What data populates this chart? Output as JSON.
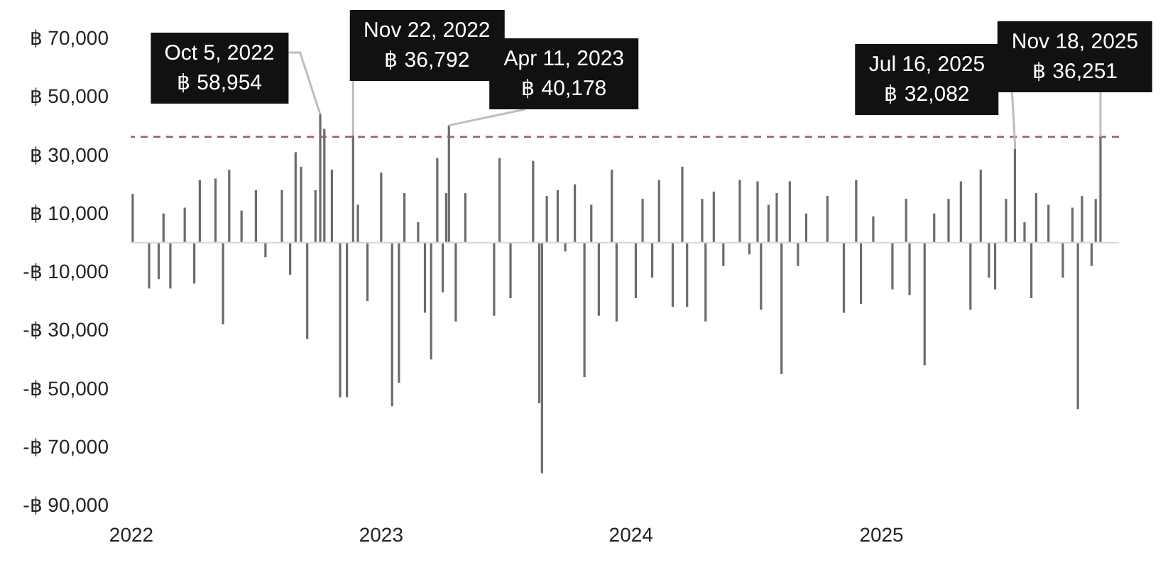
{
  "chart_data": {
    "type": "bar",
    "color": "#6b6b6b",
    "x": [
      "2022-01-04",
      "2022-01-28",
      "2022-02-11",
      "2022-02-18",
      "2022-02-28",
      "2022-03-21",
      "2022-04-04",
      "2022-04-12",
      "2022-05-05",
      "2022-05-16",
      "2022-05-25",
      "2022-06-12",
      "2022-07-03",
      "2022-07-17",
      "2022-08-10",
      "2022-08-22",
      "2022-08-30",
      "2022-09-07",
      "2022-09-16",
      "2022-09-28",
      "2022-10-05",
      "2022-10-11",
      "2022-10-22",
      "2022-11-03",
      "2022-11-13",
      "2022-11-22",
      "2022-11-29",
      "2022-12-13",
      "2023-01-02",
      "2023-01-18",
      "2023-01-28",
      "2023-02-05",
      "2023-02-25",
      "2023-03-07",
      "2023-03-16",
      "2023-03-25",
      "2023-04-02",
      "2023-04-07",
      "2023-04-11",
      "2023-04-21",
      "2023-05-05",
      "2023-06-16",
      "2023-06-24",
      "2023-07-10",
      "2023-08-12",
      "2023-08-21",
      "2023-08-25",
      "2023-09-01",
      "2023-09-17",
      "2023-09-28",
      "2023-10-12",
      "2023-10-26",
      "2023-11-05",
      "2023-11-16",
      "2023-12-05",
      "2023-12-12",
      "2024-01-09",
      "2024-01-19",
      "2024-02-02",
      "2024-02-12",
      "2024-03-03",
      "2024-03-17",
      "2024-03-24",
      "2024-04-15",
      "2024-04-20",
      "2024-05-02",
      "2024-05-16",
      "2024-06-09",
      "2024-06-23",
      "2024-07-05",
      "2024-07-10",
      "2024-07-21",
      "2024-08-02",
      "2024-08-09",
      "2024-08-21",
      "2024-09-02",
      "2024-09-14",
      "2024-10-15",
      "2024-11-08",
      "2024-11-26",
      "2024-12-03",
      "2024-12-21",
      "2025-01-18",
      "2025-02-07",
      "2025-02-12",
      "2025-03-06",
      "2025-03-20",
      "2025-04-10",
      "2025-04-28",
      "2025-05-12",
      "2025-05-27",
      "2025-06-08",
      "2025-06-17",
      "2025-07-03",
      "2025-07-16",
      "2025-07-30",
      "2025-08-09",
      "2025-08-16",
      "2025-09-03",
      "2025-09-24",
      "2025-10-08",
      "2025-10-16",
      "2025-10-22",
      "2025-11-05",
      "2025-11-11",
      "2025-11-18"
    ],
    "values": [
      16700,
      -15700,
      -12500,
      10000,
      -15700,
      12000,
      -14000,
      21500,
      22000,
      -28000,
      25000,
      11000,
      18000,
      -5000,
      18000,
      -11000,
      31000,
      26000,
      -33000,
      18000,
      44000,
      39000,
      25000,
      -53000,
      -53000,
      36792,
      13000,
      -20000,
      24000,
      -56000,
      -48000,
      17000,
      7000,
      -24000,
      -40000,
      29000,
      -17000,
      17000,
      40178,
      -27000,
      17000,
      -25000,
      29000,
      -19000,
      28000,
      -55000,
      -79000,
      16000,
      18000,
      -3000,
      20000,
      -46000,
      13000,
      -25000,
      25000,
      -27000,
      -19000,
      15000,
      -12000,
      21500,
      -22000,
      26000,
      -22000,
      15000,
      -27000,
      17500,
      -8000,
      21500,
      -4000,
      21000,
      -23000,
      13000,
      17000,
      -45000,
      21000,
      -8000,
      10000,
      16000,
      -24000,
      21500,
      -21000,
      9000,
      -16000,
      15000,
      -18000,
      -42000,
      10000,
      15000,
      21000,
      -23000,
      25000,
      -12000,
      -16000,
      15000,
      32082,
      7000,
      -19000,
      17000,
      13000,
      -12000,
      12000,
      -57000,
      16000,
      -8000,
      15000,
      36251
    ],
    "xlim": [
      "2022-01-01",
      "2025-12-15"
    ],
    "xticks": [
      "2022",
      "2023",
      "2024",
      "2025"
    ],
    "ylim": [
      -90000,
      70000
    ],
    "yticks": [
      {
        "value": -90000,
        "label": "-฿ 90,000"
      },
      {
        "value": -70000,
        "label": "-฿ 70,000"
      },
      {
        "value": -50000,
        "label": "-฿ 50,000"
      },
      {
        "value": -30000,
        "label": "-฿ 30,000"
      },
      {
        "value": -10000,
        "label": "-฿ 10,000"
      },
      {
        "value": 10000,
        "label": "฿ 10,000"
      },
      {
        "value": 30000,
        "label": "฿ 30,000"
      },
      {
        "value": 50000,
        "label": "฿ 50,000"
      },
      {
        "value": 70000,
        "label": "฿ 70,000"
      }
    ],
    "ref_lines": [
      {
        "axis": "y",
        "value": 0,
        "color": "#d9d9d9",
        "line_style": "solid"
      },
      {
        "axis": "y",
        "value": 36251,
        "color": "#a85a5a",
        "line_style": "dashed"
      }
    ],
    "annotations": [
      {
        "text": "Oct 5, 2022\n฿ 58,954",
        "x": "2022-10-05",
        "y": 44000
      },
      {
        "text": "Nov 22, 2022\n฿ 36,792",
        "x": "2022-11-22",
        "y": 36792
      },
      {
        "text": "Apr 11, 2023\n฿ 40,178",
        "x": "2023-04-11",
        "y": 40178
      },
      {
        "text": "Jul 16, 2025\n฿ 32,082",
        "x": "2025-07-16",
        "y": 32082
      },
      {
        "text": "Nov 18, 2025\n฿ 36,251",
        "x": "2025-11-18",
        "y": 36251
      }
    ],
    "grid": false
  }
}
